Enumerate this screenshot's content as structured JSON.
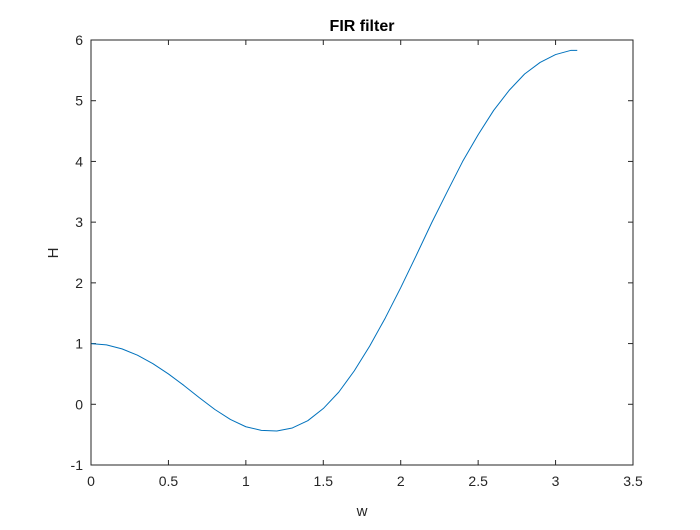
{
  "chart_data": {
    "type": "line",
    "title": "FIR filter",
    "xlabel": "w",
    "ylabel": "H",
    "xlim": [
      0,
      3.5
    ],
    "ylim": [
      -1,
      6
    ],
    "xticks": [
      0,
      0.5,
      1,
      1.5,
      2,
      2.5,
      3,
      3.5
    ],
    "xtick_labels": [
      "0",
      "0.5",
      "1",
      "1.5",
      "2",
      "2.5",
      "3",
      "3.5"
    ],
    "yticks": [
      -1,
      0,
      1,
      2,
      3,
      4,
      5,
      6
    ],
    "ytick_labels": [
      "-1",
      "0",
      "1",
      "2",
      "3",
      "4",
      "5",
      "6"
    ],
    "grid": false,
    "box": true,
    "series": [
      {
        "color": "#0072BD",
        "x": [
          0,
          0.1,
          0.2,
          0.3,
          0.4,
          0.5,
          0.6,
          0.7,
          0.8,
          0.9,
          1.0,
          1.1,
          1.2,
          1.3,
          1.4,
          1.5,
          1.6,
          1.7,
          1.8,
          1.9,
          2.0,
          2.1,
          2.2,
          2.3,
          2.4,
          2.5,
          2.6,
          2.7,
          2.8,
          2.9,
          3.0,
          3.1,
          3.14
        ],
        "values": [
          1.0,
          0.978,
          0.913,
          0.809,
          0.669,
          0.5,
          0.31,
          0.108,
          -0.086,
          -0.25,
          -0.37,
          -0.43,
          -0.44,
          -0.39,
          -0.27,
          -0.07,
          0.2,
          0.55,
          0.96,
          1.42,
          1.92,
          2.45,
          2.99,
          3.5,
          4.0,
          4.44,
          4.84,
          5.17,
          5.44,
          5.63,
          5.76,
          5.83,
          5.83
        ]
      }
    ]
  }
}
